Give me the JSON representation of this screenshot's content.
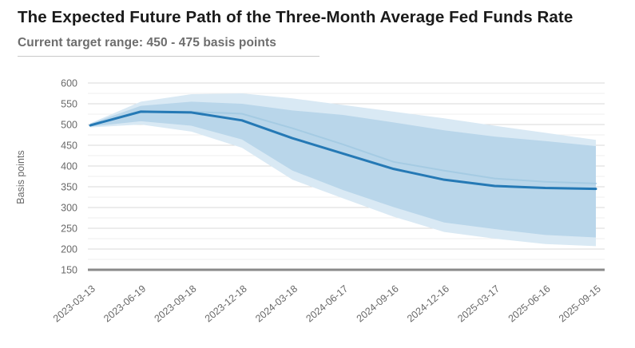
{
  "header": {
    "title": "The Expected Future Path of the Three-Month Average Fed Funds Rate",
    "subtitle": "Current target range: 450 - 475 basis points"
  },
  "colors": {
    "title_text": "#1a1a1a",
    "subtitle_text": "#6d6d6d",
    "axis_text": "#696969",
    "major_gridline": "#dadada",
    "minor_gridline": "#efefef",
    "baseline_axis": "#8a8a8a",
    "expected_path_line": "#2579b5",
    "comparison_path_line": "#a5cbe3",
    "inner_band_fill": "#b9d6ea",
    "outer_band_fill": "#d9e9f4"
  },
  "chart_data": {
    "type": "line",
    "title": "The Expected Future Path of the Three-Month Average Fed Funds Rate",
    "subtitle": "Current target range: 450 - 475 basis points",
    "xlabel": "",
    "ylabel": "Basis points",
    "ylim": [
      150,
      600
    ],
    "y_tick_step": 50,
    "y_ticks": [
      150,
      200,
      250,
      300,
      350,
      400,
      450,
      500,
      550,
      600
    ],
    "grid": "horizontal-only, minor gridlines every 25 bp",
    "legend": "none shown",
    "x": [
      "2023-03-13",
      "2023-06-19",
      "2023-09-18",
      "2023-12-18",
      "2024-03-18",
      "2024-06-17",
      "2024-09-16",
      "2024-12-16",
      "2025-03-17",
      "2025-06-16",
      "2025-09-15"
    ],
    "series": [
      {
        "name": "comparison-path",
        "color": "#a5cbe3",
        "values": [
          498,
          532,
          531,
          526,
          491,
          452,
          410,
          389,
          370,
          362,
          358
        ]
      },
      {
        "name": "expected-path",
        "color": "#2579b5",
        "values": [
          498,
          531,
          529,
          510,
          467,
          430,
          393,
          367,
          352,
          347,
          345
        ]
      }
    ],
    "bands": [
      {
        "name": "outer-confidence-band",
        "color": "#d9e9f4",
        "upper": [
          503,
          555,
          573,
          575,
          563,
          547,
          531,
          515,
          497,
          480,
          463
        ],
        "lower": [
          493,
          500,
          483,
          444,
          367,
          322,
          278,
          241,
          225,
          212,
          207
        ]
      },
      {
        "name": "inner-confidence-band",
        "color": "#b9d6ea",
        "upper": [
          502,
          545,
          555,
          550,
          534,
          523,
          505,
          486,
          471,
          460,
          448
        ],
        "lower": [
          495,
          508,
          497,
          464,
          389,
          342,
          301,
          264,
          248,
          234,
          228
        ]
      }
    ]
  }
}
